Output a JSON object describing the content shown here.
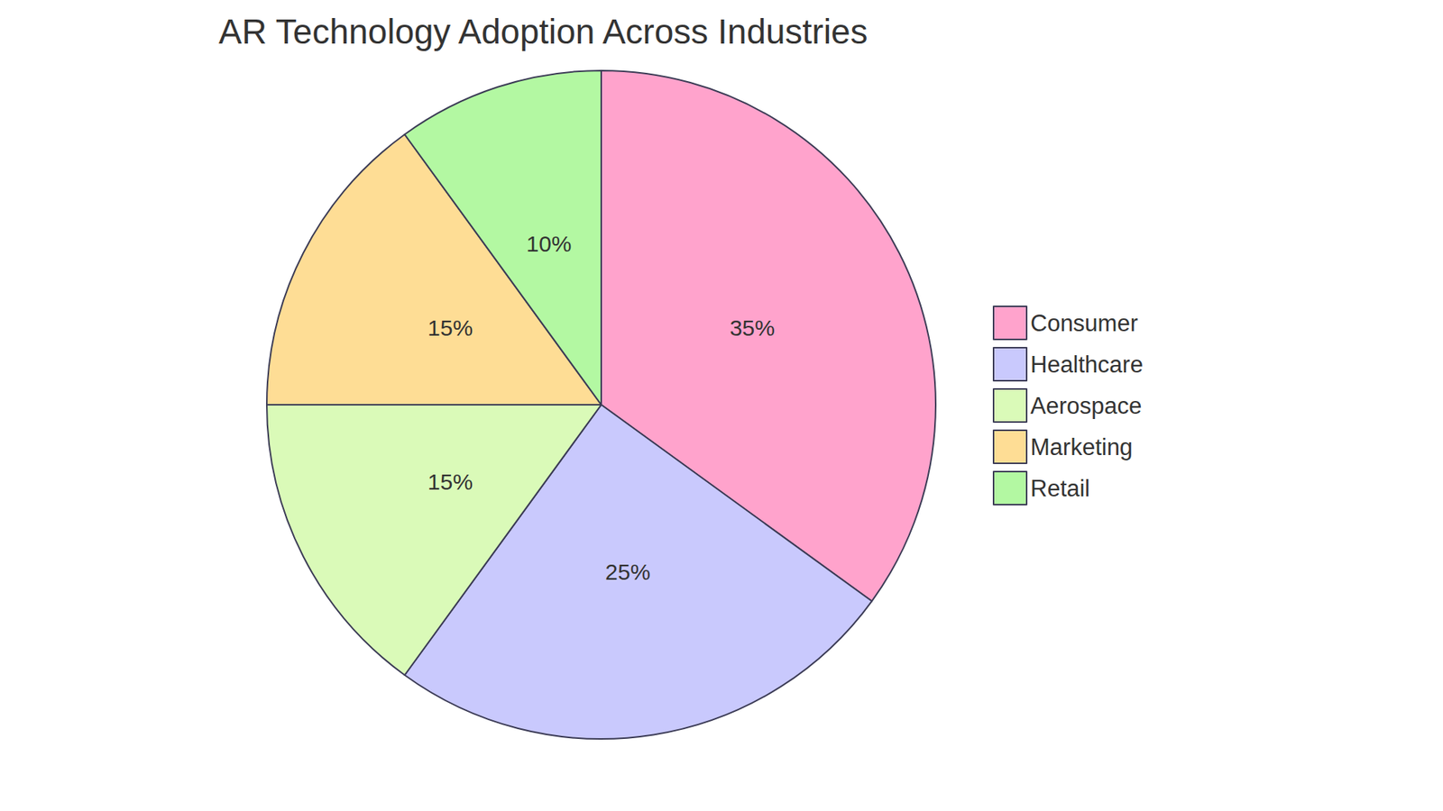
{
  "chart_data": {
    "type": "pie",
    "title": "AR Technology Adoption Across Industries",
    "categories": [
      "Consumer",
      "Healthcare",
      "Aerospace",
      "Marketing",
      "Retail"
    ],
    "values": [
      35,
      25,
      15,
      15,
      10
    ],
    "value_labels": [
      "35%",
      "25%",
      "15%",
      "15%",
      "10%"
    ],
    "colors": [
      "#ffa3cc",
      "#c9c9fd",
      "#dafab8",
      "#fedd95",
      "#b3f8a2"
    ],
    "data_labels": true,
    "legend": "right"
  }
}
